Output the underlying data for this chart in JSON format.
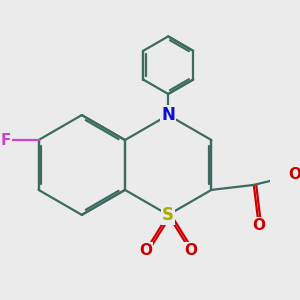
{
  "background_color": "#ebebeb",
  "bond_color": "#3d6b60",
  "bond_width": 1.6,
  "dbo": 0.048,
  "atom_colors": {
    "F": "#cc44cc",
    "N": "#1111cc",
    "S": "#aaaa00",
    "O": "#cc0000",
    "C": "#3d6b60"
  },
  "figsize": [
    3.0,
    3.0
  ],
  "dpi": 100,
  "xlim": [
    -2.6,
    2.6
  ],
  "ylim": [
    -1.3,
    3.5
  ]
}
